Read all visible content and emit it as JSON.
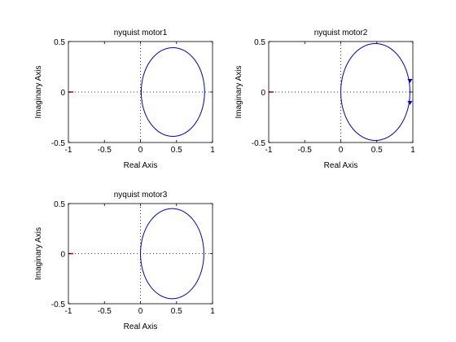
{
  "chart_data": [
    {
      "type": "line",
      "title": "nyquist motor1",
      "xlabel": "Real Axis",
      "ylabel": "Imaginary Axis",
      "xlim": [
        -1,
        1
      ],
      "ylim": [
        -0.5,
        0.5
      ],
      "xticks": [
        "-1",
        "-0.5",
        "0",
        "0.5",
        "1"
      ],
      "yticks": [
        "-0.5",
        "0",
        "0.5"
      ],
      "grid": false,
      "critical_point": [
        -1,
        0
      ],
      "series": [
        {
          "center": [
            0.45,
            0
          ],
          "radius_x": 0.44,
          "radius_y": 0.44,
          "arrows": false
        }
      ]
    },
    {
      "type": "line",
      "title": "nyquist motor2",
      "xlabel": "Real Axis",
      "ylabel": "Imaginary Axis",
      "xlim": [
        -1,
        1
      ],
      "ylim": [
        -0.5,
        0.5
      ],
      "xticks": [
        "-1",
        "-0.5",
        "0",
        "0.5",
        "1"
      ],
      "yticks": [
        "-0.5",
        "0",
        "0.5"
      ],
      "grid": false,
      "critical_point": [
        -1,
        0
      ],
      "series": [
        {
          "center": [
            0.48,
            0
          ],
          "radius_x": 0.48,
          "radius_y": 0.48,
          "arrows": true
        }
      ]
    },
    {
      "type": "line",
      "title": "nyquist motor3",
      "xlabel": "Real Axis",
      "ylabel": "Imaginary Axis",
      "xlim": [
        -1,
        1
      ],
      "ylim": [
        -0.5,
        0.5
      ],
      "xticks": [
        "-1",
        "-0.5",
        "0",
        "0.5",
        "1"
      ],
      "yticks": [
        "-0.5",
        "0",
        "0.5"
      ],
      "grid": false,
      "critical_point": [
        -1,
        0
      ],
      "series": [
        {
          "center": [
            0.44,
            0
          ],
          "radius_x": 0.44,
          "radius_y": 0.45,
          "arrows": false
        }
      ]
    }
  ],
  "colors": {
    "curve": "#0000cc",
    "critical_point": "#cc0000",
    "reference_lines": "#000000",
    "axes_frame": "#000000",
    "background": "#ffffff"
  }
}
